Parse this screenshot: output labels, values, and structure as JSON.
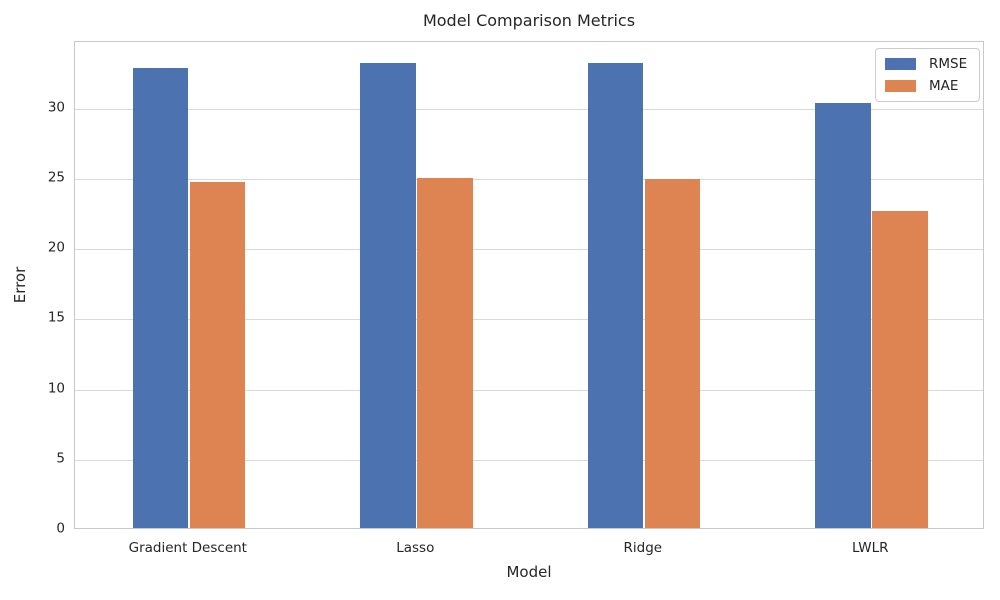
{
  "chart_data": {
    "type": "bar",
    "title": "Model Comparison Metrics",
    "xlabel": "Model",
    "ylabel": "Error",
    "categories": [
      "Gradient Descent",
      "Lasso",
      "Ridge",
      "LWLR"
    ],
    "series": [
      {
        "name": "RMSE",
        "color": "#4C72B0",
        "values": [
          32.8,
          33.1,
          33.1,
          30.3
        ]
      },
      {
        "name": "MAE",
        "color": "#DD8452",
        "values": [
          24.65,
          24.9,
          24.85,
          22.6
        ]
      }
    ],
    "yticks": [
      0,
      5,
      10,
      15,
      20,
      25,
      30
    ],
    "ylim": [
      0,
      34.76
    ],
    "grid": true,
    "legend_position": "upper right",
    "colors": {
      "background": "#ffffff",
      "text": "#262626",
      "grid": "#d9d9d9",
      "spine": "#c9c9c9"
    }
  }
}
